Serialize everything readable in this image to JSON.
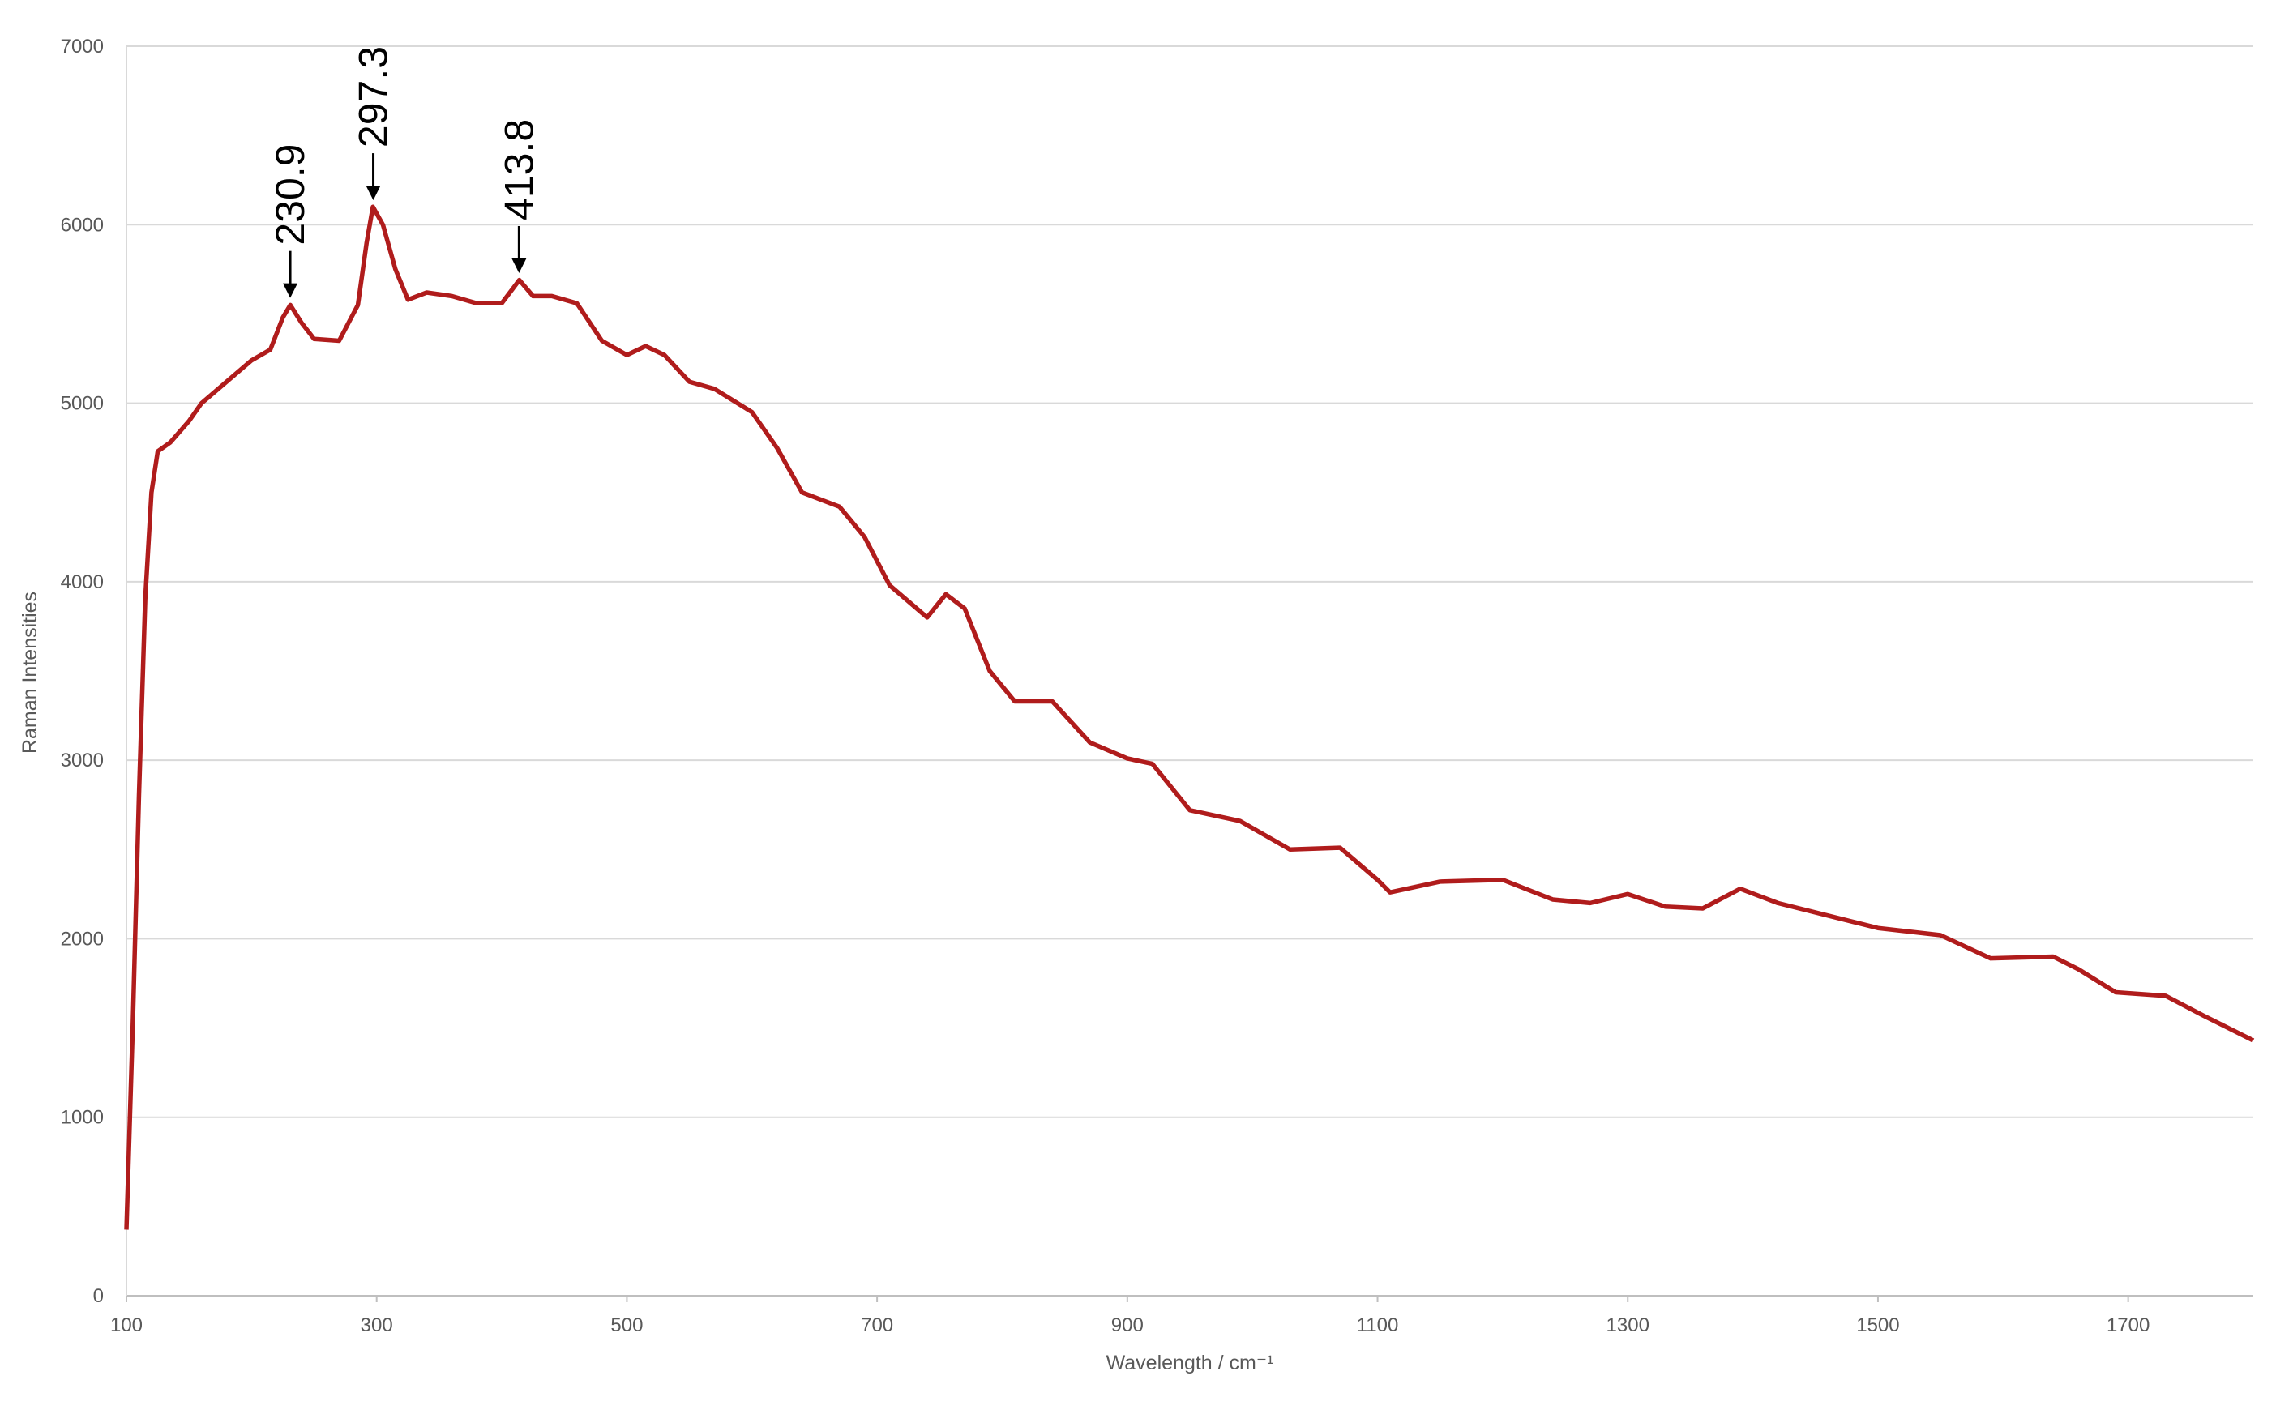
{
  "chart_data": {
    "type": "line",
    "xlabel": "Wavelength / cm⁻¹",
    "ylabel": "Raman Intensities",
    "xlim": [
      100,
      1800
    ],
    "ylim": [
      0,
      7000
    ],
    "xticks": [
      100,
      300,
      500,
      700,
      900,
      1100,
      1300,
      1500,
      1700
    ],
    "yticks": [
      0,
      1000,
      2000,
      3000,
      4000,
      5000,
      6000,
      7000
    ],
    "grid": true,
    "x": [
      100,
      105,
      110,
      115,
      120,
      125,
      135,
      150,
      160,
      180,
      200,
      215,
      225,
      231,
      240,
      250,
      270,
      285,
      292,
      297,
      305,
      315,
      325,
      340,
      360,
      380,
      400,
      414,
      425,
      440,
      460,
      480,
      500,
      515,
      530,
      550,
      570,
      600,
      620,
      640,
      670,
      690,
      710,
      740,
      755,
      770,
      790,
      810,
      840,
      870,
      900,
      920,
      950,
      990,
      1030,
      1070,
      1100,
      1110,
      1150,
      1200,
      1240,
      1270,
      1300,
      1330,
      1360,
      1390,
      1420,
      1460,
      1500,
      1550,
      1590,
      1640,
      1660,
      1690,
      1730,
      1760,
      1800
    ],
    "series": [
      {
        "color": "#b01c1c",
        "values": [
          370,
          1500,
          2800,
          3900,
          4500,
          4730,
          4780,
          4900,
          5000,
          5120,
          5240,
          5300,
          5480,
          5550,
          5450,
          5360,
          5350,
          5550,
          5900,
          6100,
          6000,
          5750,
          5580,
          5620,
          5600,
          5560,
          5560,
          5690,
          5600,
          5600,
          5560,
          5350,
          5270,
          5320,
          5270,
          5120,
          5080,
          4950,
          4750,
          4500,
          4420,
          4250,
          3980,
          3800,
          3930,
          3850,
          3500,
          3330,
          3330,
          3100,
          3010,
          2980,
          2720,
          2660,
          2500,
          2510,
          2330,
          2260,
          2320,
          2330,
          2220,
          2200,
          2250,
          2180,
          2170,
          2280,
          2200,
          2130,
          2060,
          2020,
          1890,
          1900,
          1830,
          1700,
          1680,
          1570,
          1430
        ]
      }
    ],
    "annotations": [
      {
        "label": "230.9",
        "x": 230.9
      },
      {
        "label": "297.3",
        "x": 297.3
      },
      {
        "label": "413.8",
        "x": 413.8
      }
    ]
  }
}
